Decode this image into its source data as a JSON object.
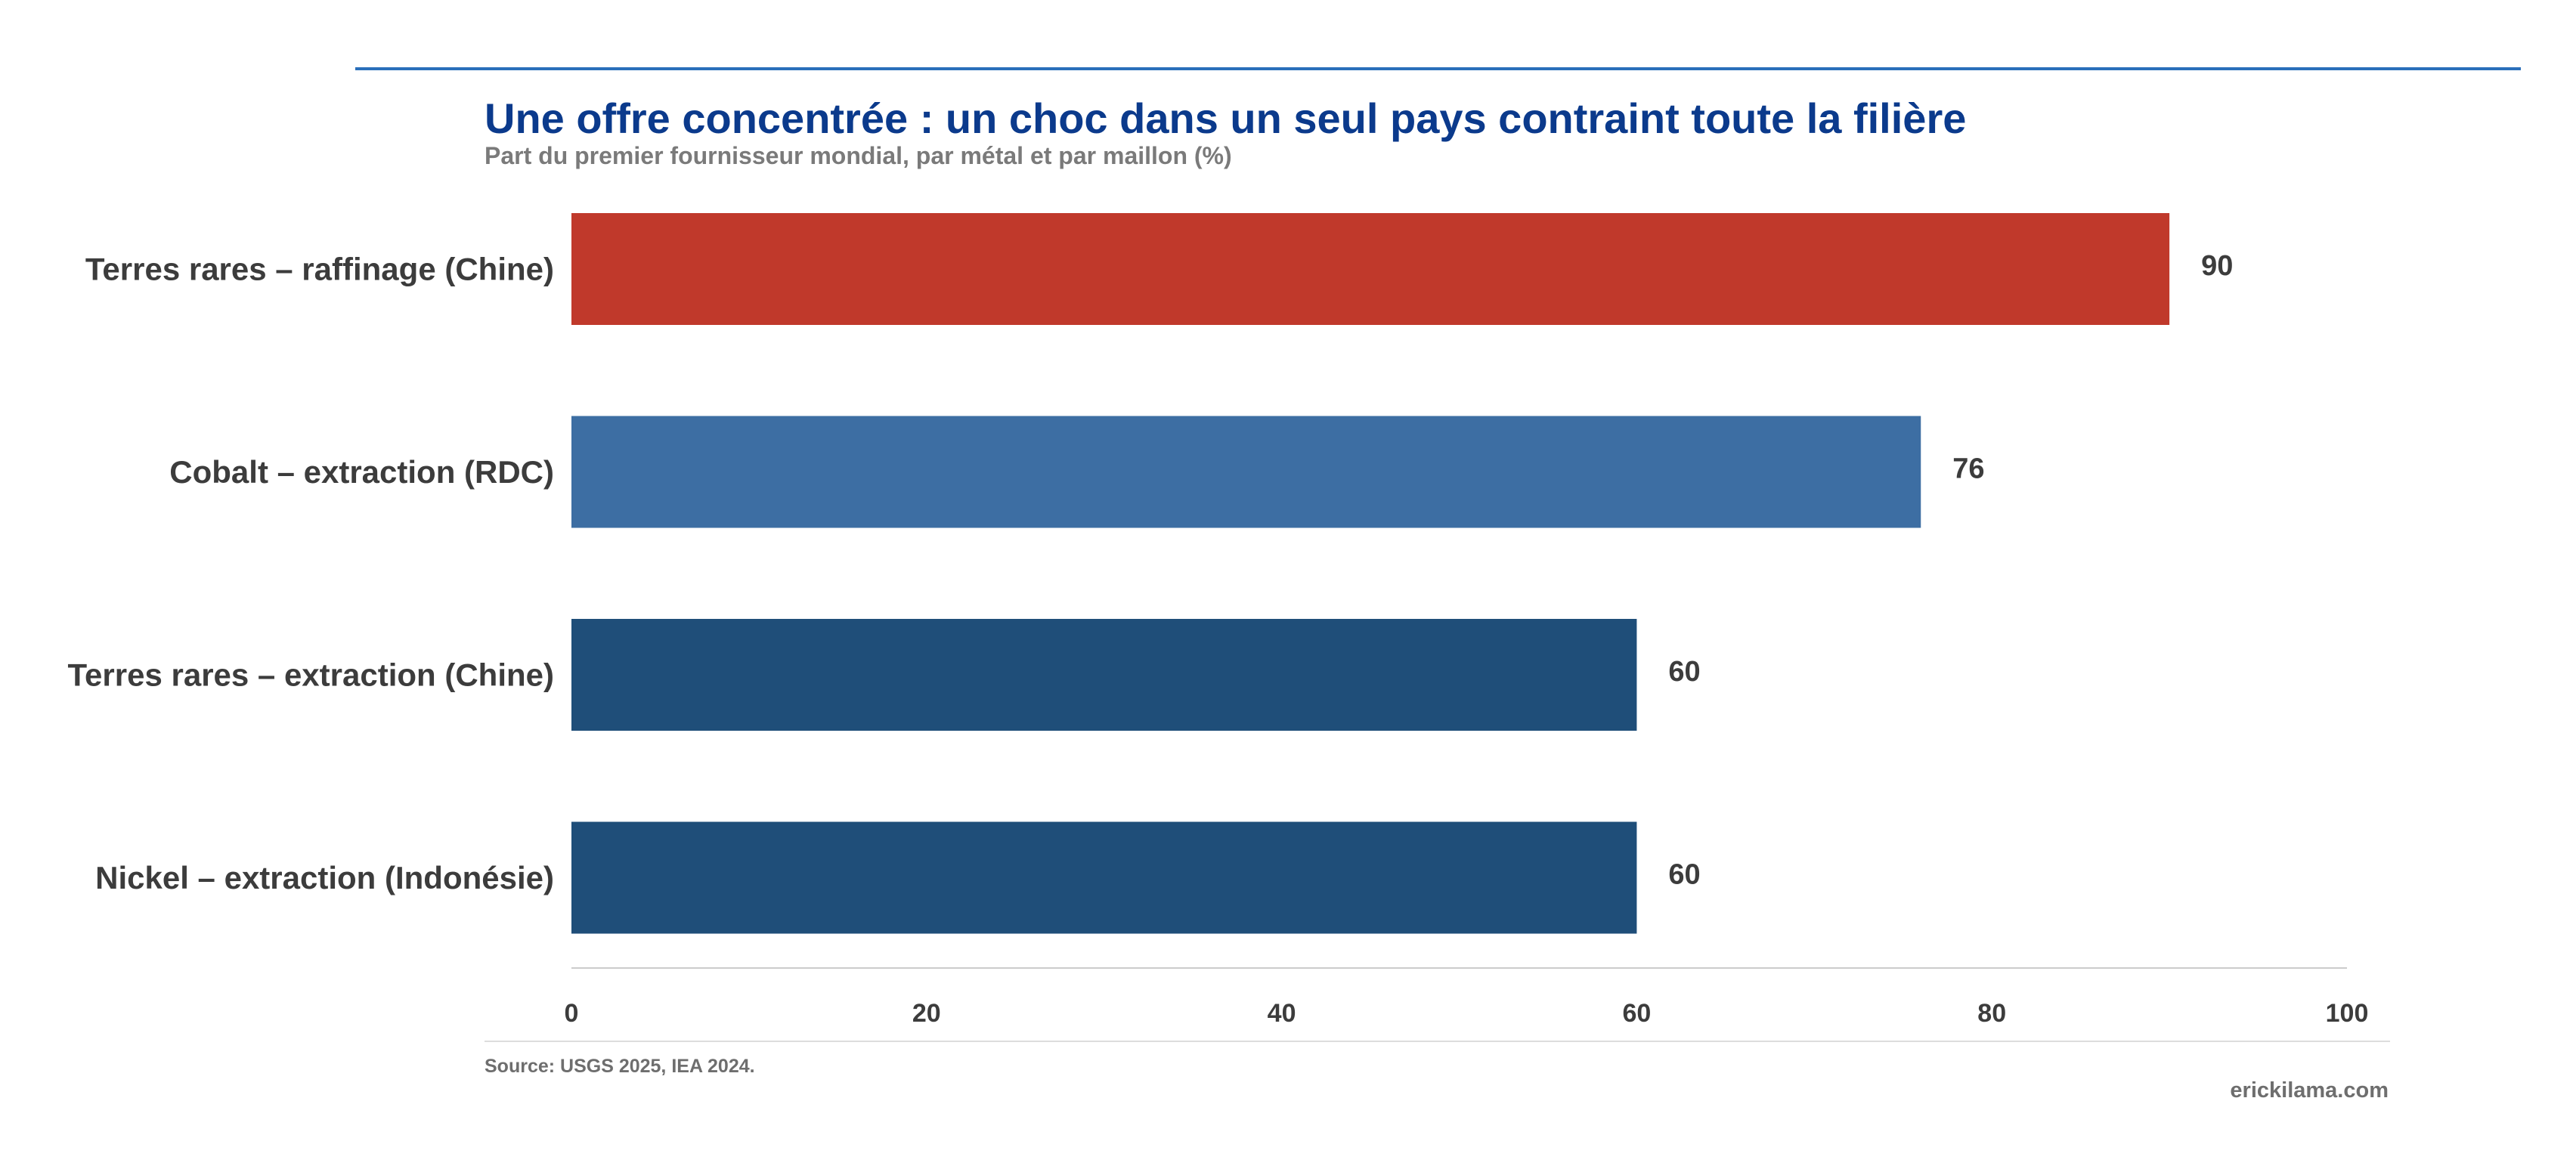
{
  "chart_data": {
    "type": "bar",
    "orientation": "horizontal",
    "title": "Une offre concentrée : un choc dans un seul pays contraint toute la filière",
    "subtitle": "Part du premier fournisseur mondial, par métal et par maillon (%)",
    "categories": [
      "Terres rares – raffinage (Chine)",
      "Cobalt – extraction (RDC)",
      "Terres rares – extraction (Chine)",
      "Nickel – extraction (Indonésie)"
    ],
    "values": [
      90,
      76,
      60,
      60
    ],
    "bar_colors": [
      "#c0392b",
      "#3d6ea3",
      "#1f4e79",
      "#1f4e79"
    ],
    "xlim": [
      0,
      100
    ],
    "xticks": [
      0,
      20,
      40,
      60,
      80,
      100
    ],
    "grid": false,
    "source": "Source: USGS 2025, IEA 2024.",
    "brand": "erickilama.com"
  },
  "colors": {
    "title": "#0b3a8c",
    "top_rule": "#2a6fba",
    "axis": "#cccccc",
    "text": "#3c3c3c",
    "muted": "#6e6e6e"
  }
}
